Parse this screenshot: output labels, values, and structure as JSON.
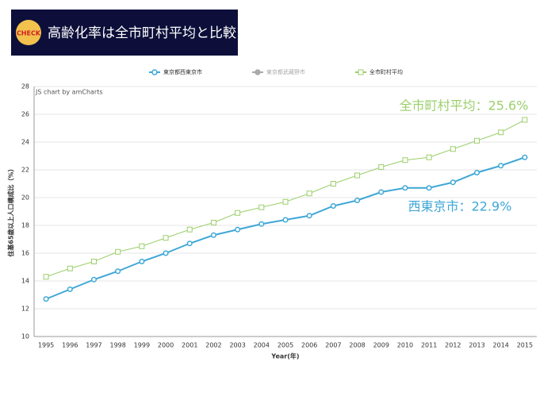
{
  "header": {
    "badge": "CHECK",
    "title": "高齢化率は全市町村平均と比較"
  },
  "chart_data": {
    "type": "line",
    "credit": "JS chart by amCharts",
    "x_label": "Year(年)",
    "y_label": "住基65歳以上人口構成比（%）",
    "categories": [
      "1995",
      "1996",
      "1997",
      "1998",
      "1999",
      "2000",
      "2001",
      "2002",
      "2003",
      "2004",
      "2005",
      "2006",
      "2007",
      "2008",
      "2009",
      "2010",
      "2011",
      "2012",
      "2013",
      "2014",
      "2015"
    ],
    "series": [
      {
        "name": "東京都西東京市",
        "color": "#3fa7d6",
        "marker": "circle",
        "values": [
          12.7,
          13.4,
          14.1,
          14.7,
          15.4,
          16.0,
          16.7,
          17.3,
          17.7,
          18.1,
          18.4,
          18.7,
          19.4,
          19.8,
          20.4,
          20.7,
          20.7,
          21.1,
          21.8,
          22.3,
          22.9
        ]
      },
      {
        "name": "全市町村平均",
        "color": "#9ccf6b",
        "marker": "square",
        "values": [
          14.3,
          14.9,
          15.4,
          16.1,
          16.5,
          17.1,
          17.7,
          18.2,
          18.9,
          19.3,
          19.7,
          20.3,
          21.0,
          21.6,
          22.2,
          22.7,
          22.9,
          23.5,
          24.1,
          24.7,
          25.6
        ]
      }
    ],
    "hidden_series": [
      {
        "name": "東京都武蔵野市",
        "color": "#aaaaaa"
      }
    ],
    "annotations": [
      {
        "text": "全市町村平均：25.6%",
        "color": "#9ccf6b"
      },
      {
        "text": "西東京市：22.9%",
        "color": "#3fa7d6"
      }
    ],
    "ylim": [
      10,
      28
    ],
    "yticks": [
      10,
      12,
      14,
      16,
      18,
      20,
      22,
      24,
      26,
      28
    ],
    "grid": true
  }
}
